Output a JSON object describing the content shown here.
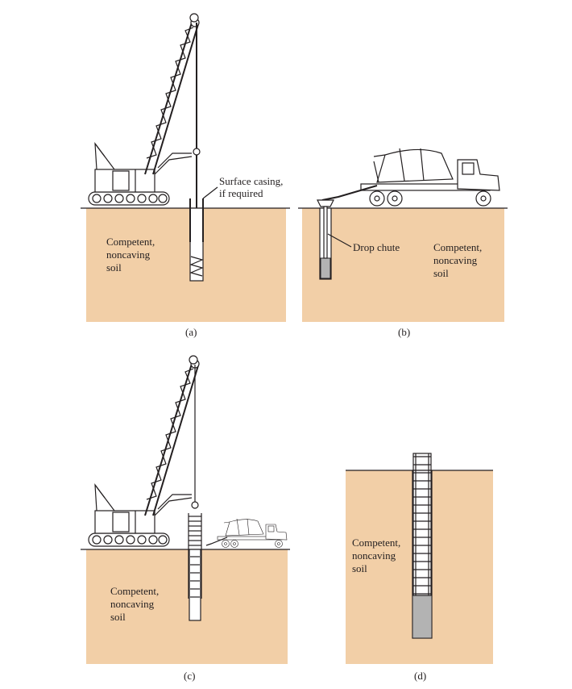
{
  "panels": {
    "a": {
      "caption": "(a)",
      "soil_label_lines": [
        "Competent,",
        "noncaving",
        "soil"
      ],
      "callout_lines": [
        "Surface casing,",
        "if required"
      ]
    },
    "b": {
      "caption": "(b)",
      "soil_label_lines": [
        "Competent,",
        "noncaving",
        "soil"
      ],
      "callout": "Drop chute"
    },
    "c": {
      "caption": "(c)",
      "soil_label_lines": [
        "Competent,",
        "noncaving",
        "soil"
      ]
    },
    "d": {
      "caption": "(d)",
      "soil_label_lines": [
        "Competent,",
        "noncaving",
        "soil"
      ]
    }
  },
  "colors": {
    "soil": "#f2cfa7",
    "concrete": "#b3b3b3",
    "line": "#231f20"
  }
}
